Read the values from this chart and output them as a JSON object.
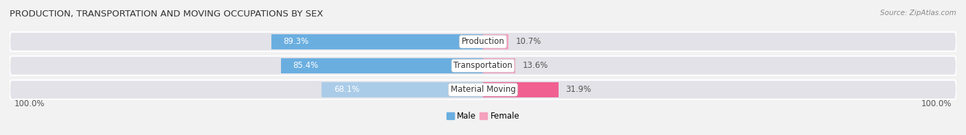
{
  "title": "PRODUCTION, TRANSPORTATION AND MOVING OCCUPATIONS BY SEX",
  "source": "Source: ZipAtlas.com",
  "categories": [
    "Production",
    "Transportation",
    "Material Moving"
  ],
  "male_values": [
    89.3,
    85.4,
    68.1
  ],
  "female_values": [
    10.7,
    13.6,
    31.9
  ],
  "male_color_strong": "#6aaee0",
  "male_color_light": "#aacce8",
  "female_color_light": "#f5a0bc",
  "female_color_strong": "#f06090",
  "label_bg_color": "white",
  "bg_color": "#f2f2f2",
  "row_bg_color": "#e2e2e8",
  "x_left_label": "100.0%",
  "x_right_label": "100.0%",
  "legend_male": "Male",
  "legend_female": "Female",
  "bar_height": 0.62
}
